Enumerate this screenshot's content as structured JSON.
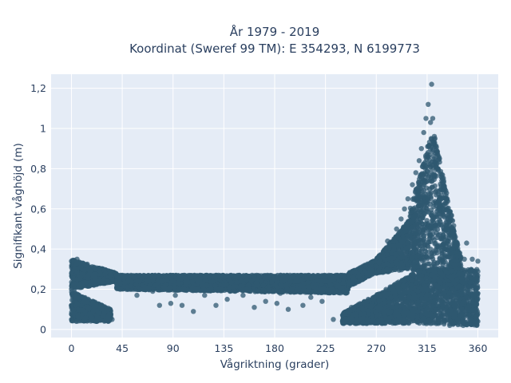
{
  "chart_data": {
    "type": "scatter",
    "title": "År 1979 - 2019",
    "subtitle": "Koordinat (Sweref 99 TM): E 354293, N 6199773",
    "xlabel": "Vågriktning (grader)",
    "ylabel": "Signifikant våghöjd (m)",
    "xlim": [
      -18,
      378
    ],
    "ylim": [
      -0.04,
      1.27
    ],
    "x_ticks": [
      0,
      45,
      90,
      135,
      180,
      225,
      270,
      315,
      360
    ],
    "x_tick_labels": [
      "0",
      "45",
      "90",
      "135",
      "180",
      "225",
      "270",
      "315",
      "360"
    ],
    "y_ticks": [
      0,
      0.2,
      0.4,
      0.6,
      0.8,
      1.0,
      1.2
    ],
    "y_tick_labels": [
      "0",
      "0,2",
      "0,4",
      "0,6",
      "0,8",
      "1",
      "1,2"
    ],
    "grid": true,
    "background": "#e5ecf6",
    "marker_color": "#2f5870",
    "series": [
      {
        "points": [
          [
            0,
            0.05
          ],
          [
            0,
            0.12
          ],
          [
            0,
            0.2
          ],
          [
            0,
            0.28
          ],
          [
            0,
            0.34
          ],
          [
            2,
            0.08
          ],
          [
            3,
            0.3
          ],
          [
            5,
            0.35
          ],
          [
            6,
            0.06
          ],
          [
            8,
            0.26
          ],
          [
            10,
            0.33
          ],
          [
            12,
            0.09
          ],
          [
            15,
            0.3
          ],
          [
            18,
            0.06
          ],
          [
            20,
            0.31
          ],
          [
            22,
            0.12
          ],
          [
            25,
            0.3
          ],
          [
            28,
            0.07
          ],
          [
            30,
            0.28
          ],
          [
            33,
            0.1
          ],
          [
            35,
            0.27
          ],
          [
            36,
            0.05
          ],
          [
            40,
            0.27
          ],
          [
            45,
            0.27
          ],
          [
            50,
            0.24
          ],
          [
            55,
            0.26
          ],
          [
            58,
            0.17
          ],
          [
            60,
            0.24
          ],
          [
            63,
            0.22
          ],
          [
            65,
            0.21
          ],
          [
            70,
            0.26
          ],
          [
            72,
            0.19
          ],
          [
            75,
            0.22
          ],
          [
            78,
            0.12
          ],
          [
            80,
            0.24
          ],
          [
            85,
            0.2
          ],
          [
            88,
            0.13
          ],
          [
            90,
            0.24
          ],
          [
            92,
            0.17
          ],
          [
            95,
            0.23
          ],
          [
            98,
            0.12
          ],
          [
            100,
            0.2
          ],
          [
            105,
            0.26
          ],
          [
            108,
            0.09
          ],
          [
            110,
            0.2
          ],
          [
            115,
            0.23
          ],
          [
            118,
            0.17
          ],
          [
            120,
            0.22
          ],
          [
            125,
            0.24
          ],
          [
            128,
            0.12
          ],
          [
            130,
            0.2
          ],
          [
            135,
            0.22
          ],
          [
            138,
            0.15
          ],
          [
            140,
            0.26
          ],
          [
            145,
            0.19
          ],
          [
            150,
            0.24
          ],
          [
            152,
            0.17
          ],
          [
            155,
            0.2
          ],
          [
            160,
            0.27
          ],
          [
            162,
            0.11
          ],
          [
            165,
            0.19
          ],
          [
            170,
            0.22
          ],
          [
            172,
            0.14
          ],
          [
            175,
            0.2
          ],
          [
            180,
            0.25
          ],
          [
            182,
            0.13
          ],
          [
            185,
            0.18
          ],
          [
            190,
            0.22
          ],
          [
            192,
            0.1
          ],
          [
            195,
            0.2
          ],
          [
            200,
            0.24
          ],
          [
            205,
            0.12
          ],
          [
            210,
            0.21
          ],
          [
            212,
            0.16
          ],
          [
            215,
            0.26
          ],
          [
            220,
            0.2
          ],
          [
            222,
            0.14
          ],
          [
            225,
            0.24
          ],
          [
            228,
            0.27
          ],
          [
            230,
            0.2
          ],
          [
            232,
            0.05
          ],
          [
            235,
            0.26
          ],
          [
            240,
            0.27
          ],
          [
            242,
            0.05
          ],
          [
            245,
            0.2
          ],
          [
            248,
            0.11
          ],
          [
            250,
            0.25
          ],
          [
            255,
            0.24
          ],
          [
            258,
            0.1
          ],
          [
            260,
            0.32
          ],
          [
            262,
            0.05
          ],
          [
            265,
            0.27
          ],
          [
            268,
            0.15
          ],
          [
            270,
            0.28
          ],
          [
            272,
            0.36
          ],
          [
            275,
            0.05
          ],
          [
            278,
            0.4
          ],
          [
            280,
            0.44
          ],
          [
            282,
            0.2
          ],
          [
            285,
            0.44
          ],
          [
            288,
            0.5
          ],
          [
            290,
            0.06
          ],
          [
            292,
            0.55
          ],
          [
            295,
            0.6
          ],
          [
            298,
            0.65
          ],
          [
            300,
            0.2
          ],
          [
            302,
            0.72
          ],
          [
            305,
            0.78
          ],
          [
            306,
            0.04
          ],
          [
            308,
            0.84
          ],
          [
            310,
            0.9
          ],
          [
            311,
            0.4
          ],
          [
            312,
            0.98
          ],
          [
            314,
            1.05
          ],
          [
            315,
            0.1
          ],
          [
            316,
            1.12
          ],
          [
            318,
            1.03
          ],
          [
            319,
            1.22
          ],
          [
            320,
            1.05
          ],
          [
            321,
            0.3
          ],
          [
            322,
            0.95
          ],
          [
            324,
            0.88
          ],
          [
            325,
            0.03
          ],
          [
            326,
            0.85
          ],
          [
            328,
            0.74
          ],
          [
            330,
            0.6
          ],
          [
            332,
            0.5
          ],
          [
            334,
            0.44
          ],
          [
            335,
            0.02
          ],
          [
            336,
            0.4
          ],
          [
            338,
            0.36
          ],
          [
            340,
            0.46
          ],
          [
            342,
            0.05
          ],
          [
            344,
            0.38
          ],
          [
            345,
            0.36
          ],
          [
            347,
            0.02
          ],
          [
            348,
            0.35
          ],
          [
            350,
            0.43
          ],
          [
            352,
            0.03
          ],
          [
            355,
            0.35
          ],
          [
            357,
            0.04
          ],
          [
            358,
            0.28
          ],
          [
            360,
            0.34
          ],
          [
            360,
            0.18
          ],
          [
            360,
            0.04
          ]
        ],
        "dense_regions": [
          {
            "x": [
              0,
              40
            ],
            "y_low": [
              0.2,
              0.24
            ],
            "y_high": [
              0.35,
              0.28
            ]
          },
          {
            "x": [
              0,
              35
            ],
            "y_low": [
              0.04,
              0.04
            ],
            "y_high": [
              0.19,
              0.1
            ]
          },
          {
            "x": [
              40,
              245
            ],
            "y_low": [
              0.2,
              0.18
            ],
            "y_high": [
              0.27,
              0.27
            ]
          },
          {
            "x": [
              245,
              275
            ],
            "y_low": [
              0.21,
              0.3
            ],
            "y_high": [
              0.28,
              0.36
            ]
          },
          {
            "x": [
              270,
              300
            ],
            "y_low": [
              0.28,
              0.3
            ],
            "y_high": [
              0.35,
              0.55
            ]
          },
          {
            "x": [
              300,
              320
            ],
            "y_low": [
              0.3,
              0.25
            ],
            "y_high": [
              0.6,
              1.0
            ]
          },
          {
            "x": [
              320,
              345
            ],
            "y_low": [
              0.25,
              0.2
            ],
            "y_high": [
              1.0,
              0.35
            ]
          },
          {
            "x": [
              240,
              310
            ],
            "y_low": [
              0.03,
              0.03
            ],
            "y_high": [
              0.08,
              0.3
            ]
          },
          {
            "x": [
              310,
              360
            ],
            "y_low": [
              0.03,
              0.02
            ],
            "y_high": [
              0.3,
              0.3
            ]
          }
        ]
      }
    ]
  }
}
